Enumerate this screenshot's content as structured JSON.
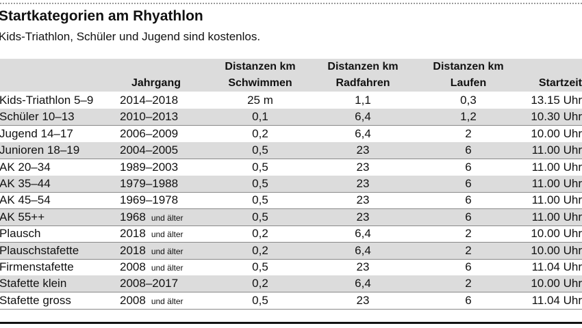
{
  "header": {
    "title": "Startkategorien am Rhyathlon",
    "subtitle": "Kids-Triathlon, Schüler und Jugend sind kostenlos."
  },
  "table": {
    "columns": {
      "jahrgang": "Jahrgang",
      "schwimmen": [
        "Distanzen km",
        "Schwimmen"
      ],
      "radfahren": [
        "Distanzen km",
        "Radfahren"
      ],
      "laufen": [
        "Distanzen km",
        "Laufen"
      ],
      "startzeit": "Startzeit"
    },
    "rows": [
      {
        "kategorie": "Kids-Triathlon 5–9",
        "jahrgang": "2014–2018",
        "schwimmen": "25 m",
        "radfahren": "1,1",
        "laufen": "0,3",
        "startzeit": "13.15 Uhr"
      },
      {
        "kategorie": "Schüler 10–13",
        "jahrgang": "2010–2013",
        "schwimmen": "0,1",
        "radfahren": "6,4",
        "laufen": "1,2",
        "startzeit": "10.30 Uhr"
      },
      {
        "kategorie": "Jugend 14–17",
        "jahrgang": "2006–2009",
        "schwimmen": "0,2",
        "radfahren": "6,4",
        "laufen": "2",
        "startzeit": "10.00 Uhr"
      },
      {
        "kategorie": "Junioren 18–19",
        "jahrgang": "2004–2005",
        "schwimmen": "0,5",
        "radfahren": "23",
        "laufen": "6",
        "startzeit": "11.00 Uhr"
      },
      {
        "kategorie": "AK 20–34",
        "jahrgang": "1989–2003",
        "schwimmen": "0,5",
        "radfahren": "23",
        "laufen": "6",
        "startzeit": "11.00 Uhr"
      },
      {
        "kategorie": "AK 35–44",
        "jahrgang": "1979–1988",
        "schwimmen": "0,5",
        "radfahren": "23",
        "laufen": "6",
        "startzeit": "11.00 Uhr"
      },
      {
        "kategorie": "AK 45–54",
        "jahrgang": "1969–1978",
        "schwimmen": "0,5",
        "radfahren": "23",
        "laufen": "6",
        "startzeit": "11.00 Uhr"
      },
      {
        "kategorie": "AK 55++",
        "jahrgang": "1968",
        "zusatz": "und älter",
        "schwimmen": "0,5",
        "radfahren": "23",
        "laufen": "6",
        "startzeit": "11.00 Uhr"
      },
      {
        "kategorie": "Plausch",
        "jahrgang": "2018",
        "zusatz": "und älter",
        "schwimmen": "0,2",
        "radfahren": "6,4",
        "laufen": "2",
        "startzeit": "10.00 Uhr"
      },
      {
        "kategorie": "Plauschstafette",
        "jahrgang": "2018",
        "zusatz": "und älter",
        "schwimmen": "0,2",
        "radfahren": "6,4",
        "laufen": "2",
        "startzeit": "10.00 Uhr"
      },
      {
        "kategorie": "Firmenstafette",
        "jahrgang": "2008",
        "zusatz": "und älter",
        "schwimmen": "0,5",
        "radfahren": "23",
        "laufen": "6",
        "startzeit": "11.04 Uhr"
      },
      {
        "kategorie": "Stafette klein",
        "jahrgang": "2008–2017",
        "schwimmen": "0,2",
        "radfahren": "6,4",
        "laufen": "2",
        "startzeit": "10.00 Uhr"
      },
      {
        "kategorie": "Stafette gross",
        "jahrgang": "2008",
        "zusatz": "und älter",
        "schwimmen": "0,5",
        "radfahren": "23",
        "laufen": "6",
        "startzeit": "11.04 Uhr"
      }
    ]
  }
}
